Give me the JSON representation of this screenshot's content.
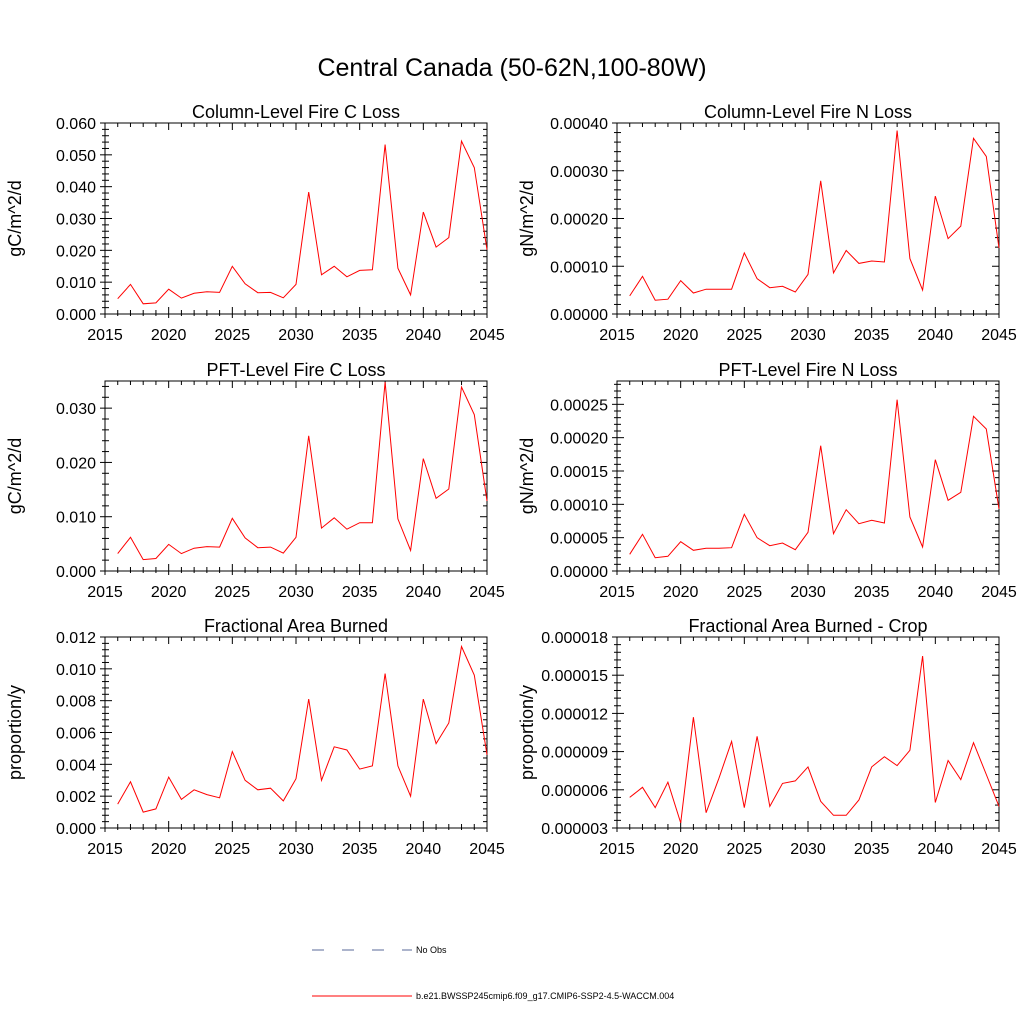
{
  "title": "Central Canada (50-62N,100-80W)",
  "legend": {
    "obs_label": "No Obs",
    "obs_color": "#5a6a9a",
    "model_label": "b.e21.BWSSP245cmip6.f09_g17.CMIP6-SSP2-4.5-WACCM.004",
    "model_color": "#ff0000"
  },
  "chart_data": [
    {
      "type": "line",
      "title": "Column-Level Fire C Loss",
      "ylabel": "gC/m^2/d",
      "xlim": [
        2015,
        2045
      ],
      "ylim": [
        0,
        0.06
      ],
      "xticks": [
        2015,
        2020,
        2025,
        2030,
        2035,
        2040,
        2045
      ],
      "xtick_labels": [
        "2015",
        "2020",
        "2025",
        "2030",
        "2035",
        "2040",
        "2045"
      ],
      "yticks": [
        0,
        0.01,
        0.02,
        0.03,
        0.04,
        0.05,
        0.06
      ],
      "ytick_labels": [
        "0.000",
        "0.010",
        "0.020",
        "0.030",
        "0.040",
        "0.050",
        "0.060"
      ],
      "x": [
        2016,
        2017,
        2018,
        2019,
        2020,
        2021,
        2022,
        2023,
        2024,
        2025,
        2026,
        2027,
        2028,
        2029,
        2030,
        2031,
        2032,
        2033,
        2034,
        2035,
        2036,
        2037,
        2038,
        2039,
        2040,
        2041,
        2042,
        2043,
        2044,
        2045
      ],
      "series": [
        {
          "name": "b.e21.BWSSP245cmip6.f09_g17.CMIP6-SSP2-4.5-WACCM.004",
          "values": [
            0.0048,
            0.0093,
            0.0032,
            0.0035,
            0.0078,
            0.005,
            0.0065,
            0.007,
            0.0068,
            0.015,
            0.0095,
            0.0067,
            0.0068,
            0.0051,
            0.0093,
            0.0383,
            0.0123,
            0.015,
            0.0117,
            0.0137,
            0.0139,
            0.0532,
            0.0144,
            0.006,
            0.032,
            0.021,
            0.024,
            0.0543,
            0.046,
            0.0202
          ]
        }
      ]
    },
    {
      "type": "line",
      "title": "Column-Level Fire N Loss",
      "ylabel": "gN/m^2/d",
      "xlim": [
        2015,
        2045
      ],
      "ylim": [
        0,
        0.0004
      ],
      "xticks": [
        2015,
        2020,
        2025,
        2030,
        2035,
        2040,
        2045
      ],
      "xtick_labels": [
        "2015",
        "2020",
        "2025",
        "2030",
        "2035",
        "2040",
        "2045"
      ],
      "yticks": [
        0,
        0.0001,
        0.0002,
        0.0003,
        0.0004
      ],
      "ytick_labels": [
        "0.00000",
        "0.00010",
        "0.00020",
        "0.00030",
        "0.00040"
      ],
      "x": [
        2016,
        2017,
        2018,
        2019,
        2020,
        2021,
        2022,
        2023,
        2024,
        2025,
        2026,
        2027,
        2028,
        2029,
        2030,
        2031,
        2032,
        2033,
        2034,
        2035,
        2036,
        2037,
        2038,
        2039,
        2040,
        2041,
        2042,
        2043,
        2044,
        2045
      ],
      "series": [
        {
          "name": "b.e21.BWSSP245cmip6.f09_g17.CMIP6-SSP2-4.5-WACCM.004",
          "values": [
            3.8e-05,
            7.9e-05,
            2.9e-05,
            3.1e-05,
            7e-05,
            4.4e-05,
            5.2e-05,
            5.2e-05,
            5.2e-05,
            0.000128,
            7.4e-05,
            5.5e-05,
            5.8e-05,
            4.6e-05,
            8.3e-05,
            0.000279,
            8.6e-05,
            0.000133,
            0.000106,
            0.000111,
            0.000109,
            0.000384,
            0.000116,
            5e-05,
            0.000247,
            0.000158,
            0.000184,
            0.000368,
            0.00033,
            0.000138
          ]
        }
      ]
    },
    {
      "type": "line",
      "title": "PFT-Level Fire C Loss",
      "ylabel": "gC/m^2/d",
      "xlim": [
        2015,
        2045
      ],
      "ylim": [
        0,
        0.035
      ],
      "xticks": [
        2015,
        2020,
        2025,
        2030,
        2035,
        2040,
        2045
      ],
      "xtick_labels": [
        "2015",
        "2020",
        "2025",
        "2030",
        "2035",
        "2040",
        "2045"
      ],
      "yticks": [
        0,
        0.01,
        0.02,
        0.03
      ],
      "ytick_labels": [
        "0.000",
        "0.010",
        "0.020",
        "0.030"
      ],
      "x": [
        2016,
        2017,
        2018,
        2019,
        2020,
        2021,
        2022,
        2023,
        2024,
        2025,
        2026,
        2027,
        2028,
        2029,
        2030,
        2031,
        2032,
        2033,
        2034,
        2035,
        2036,
        2037,
        2038,
        2039,
        2040,
        2041,
        2042,
        2043,
        2044,
        2045
      ],
      "series": [
        {
          "name": "b.e21.BWSSP245cmip6.f09_g17.CMIP6-SSP2-4.5-WACCM.004",
          "values": [
            0.0032,
            0.0062,
            0.0021,
            0.0023,
            0.0049,
            0.0032,
            0.0042,
            0.0045,
            0.0044,
            0.0097,
            0.0061,
            0.0043,
            0.0044,
            0.0033,
            0.0062,
            0.0249,
            0.0079,
            0.0098,
            0.0077,
            0.0089,
            0.0089,
            0.0348,
            0.0096,
            0.0038,
            0.0207,
            0.0134,
            0.0151,
            0.0339,
            0.0288,
            0.0129
          ]
        }
      ]
    },
    {
      "type": "line",
      "title": "PFT-Level Fire N Loss",
      "ylabel": "gN/m^2/d",
      "xlim": [
        2015,
        2045
      ],
      "ylim": [
        0,
        0.000285
      ],
      "xticks": [
        2015,
        2020,
        2025,
        2030,
        2035,
        2040,
        2045
      ],
      "xtick_labels": [
        "2015",
        "2020",
        "2025",
        "2030",
        "2035",
        "2040",
        "2045"
      ],
      "yticks": [
        0,
        5e-05,
        0.0001,
        0.00015,
        0.0002,
        0.00025
      ],
      "ytick_labels": [
        "0.00000",
        "0.00005",
        "0.00010",
        "0.00015",
        "0.00020",
        "0.00025"
      ],
      "x": [
        2016,
        2017,
        2018,
        2019,
        2020,
        2021,
        2022,
        2023,
        2024,
        2025,
        2026,
        2027,
        2028,
        2029,
        2030,
        2031,
        2032,
        2033,
        2034,
        2035,
        2036,
        2037,
        2038,
        2039,
        2040,
        2041,
        2042,
        2043,
        2044,
        2045
      ],
      "series": [
        {
          "name": "b.e21.BWSSP245cmip6.f09_g17.CMIP6-SSP2-4.5-WACCM.004",
          "values": [
            2.5e-05,
            5.5e-05,
            2e-05,
            2.2e-05,
            4.4e-05,
            3.1e-05,
            3.4e-05,
            3.4e-05,
            3.5e-05,
            8.5e-05,
            5e-05,
            3.8e-05,
            4.2e-05,
            3.2e-05,
            5.8e-05,
            0.000188,
            5.6e-05,
            9.2e-05,
            7.1e-05,
            7.6e-05,
            7.2e-05,
            0.000257,
            8.1e-05,
            3.6e-05,
            0.000167,
            0.000106,
            0.000118,
            0.000232,
            0.000213,
            9.3e-05
          ]
        }
      ]
    },
    {
      "type": "line",
      "title": "Fractional Area Burned",
      "ylabel": "proportion/y",
      "xlim": [
        2015,
        2045
      ],
      "ylim": [
        0,
        0.012
      ],
      "xticks": [
        2015,
        2020,
        2025,
        2030,
        2035,
        2040,
        2045
      ],
      "xtick_labels": [
        "2015",
        "2020",
        "2025",
        "2030",
        "2035",
        "2040",
        "2045"
      ],
      "yticks": [
        0,
        0.002,
        0.004,
        0.006,
        0.008,
        0.01,
        0.012
      ],
      "ytick_labels": [
        "0.000",
        "0.002",
        "0.004",
        "0.006",
        "0.008",
        "0.010",
        "0.012"
      ],
      "x": [
        2016,
        2017,
        2018,
        2019,
        2020,
        2021,
        2022,
        2023,
        2024,
        2025,
        2026,
        2027,
        2028,
        2029,
        2030,
        2031,
        2032,
        2033,
        2034,
        2035,
        2036,
        2037,
        2038,
        2039,
        2040,
        2041,
        2042,
        2043,
        2044,
        2045
      ],
      "series": [
        {
          "name": "b.e21.BWSSP245cmip6.f09_g17.CMIP6-SSP2-4.5-WACCM.004",
          "values": [
            0.0015,
            0.0029,
            0.001,
            0.0012,
            0.0032,
            0.0018,
            0.0024,
            0.0021,
            0.0019,
            0.0048,
            0.003,
            0.0024,
            0.0025,
            0.0017,
            0.0031,
            0.0081,
            0.003,
            0.0051,
            0.0049,
            0.0037,
            0.0039,
            0.0097,
            0.0039,
            0.002,
            0.0081,
            0.0053,
            0.0066,
            0.0114,
            0.0096,
            0.0046
          ]
        }
      ]
    },
    {
      "type": "line",
      "title": "Fractional Area Burned - Crop",
      "ylabel": "proportion/y",
      "xlim": [
        2015,
        2045
      ],
      "ylim": [
        3e-06,
        1.8e-05
      ],
      "xticks": [
        2015,
        2020,
        2025,
        2030,
        2035,
        2040,
        2045
      ],
      "xtick_labels": [
        "2015",
        "2020",
        "2025",
        "2030",
        "2035",
        "2040",
        "2045"
      ],
      "yticks": [
        3e-06,
        6e-06,
        9e-06,
        1.2e-05,
        1.5e-05,
        1.8e-05
      ],
      "ytick_labels": [
        "0.000003",
        "0.000006",
        "0.000009",
        "0.000012",
        "0.000015",
        "0.000018"
      ],
      "x": [
        2016,
        2017,
        2018,
        2019,
        2020,
        2021,
        2022,
        2023,
        2024,
        2025,
        2026,
        2027,
        2028,
        2029,
        2030,
        2031,
        2032,
        2033,
        2034,
        2035,
        2036,
        2037,
        2038,
        2039,
        2040,
        2041,
        2042,
        2043,
        2044,
        2045
      ],
      "series": [
        {
          "name": "b.e21.BWSSP245cmip6.f09_g17.CMIP6-SSP2-4.5-WACCM.004",
          "values": [
            5.4e-06,
            6.2e-06,
            4.6e-06,
            6.6e-06,
            3.4e-06,
            1.17e-05,
            4.2e-06,
            6.9e-06,
            9.8e-06,
            4.6e-06,
            1.02e-05,
            4.7e-06,
            6.5e-06,
            6.7e-06,
            7.8e-06,
            5.1e-06,
            4e-06,
            4e-06,
            5.2e-06,
            7.8e-06,
            8.6e-06,
            7.9e-06,
            9.1e-06,
            1.65e-05,
            5e-06,
            8.3e-06,
            6.8e-06,
            9.7e-06,
            7.2e-06,
            4.7e-06
          ]
        }
      ]
    }
  ]
}
